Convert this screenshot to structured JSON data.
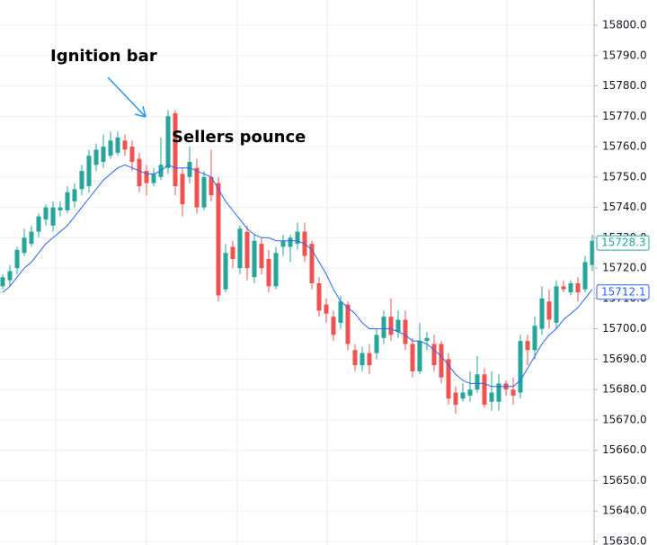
{
  "chart_data": {
    "type": "candlestick",
    "annotations": [
      "Ignition bar",
      "Sellers pounce"
    ],
    "up_color": "#26a69a",
    "down_color": "#ef5350",
    "open": [
      15714,
      15716,
      15720,
      15725,
      15728,
      15732,
      15736,
      15734,
      15739,
      15739,
      15742,
      15746,
      15747,
      15754,
      15755,
      15757,
      15758,
      15762,
      15760,
      15756,
      15752,
      15748,
      15750,
      15753,
      15771,
      15751,
      15750,
      15753,
      15740,
      15750,
      15748,
      15713,
      15727,
      15720,
      15732,
      15717,
      15728,
      15723,
      15714,
      15727,
      15727,
      15728,
      15732,
      15728,
      15715,
      15708,
      15704,
      15702,
      15708,
      15693,
      15688,
      15692,
      15692,
      15697,
      15704,
      15699,
      15703,
      15695,
      15686,
      15696,
      15695,
      15695,
      15690,
      15679,
      15677,
      15678,
      15680,
      15685,
      15676,
      15676,
      15682,
      15680,
      15679,
      15696,
      15693,
      15700,
      15709,
      15702,
      15714,
      15712,
      15715,
      15713,
      15721
    ],
    "high": [
      15718,
      15721,
      15727,
      15733,
      15734,
      15738,
      15741,
      15742,
      15742,
      15747,
      15748,
      15754,
      15759,
      15761,
      15764,
      15765,
      15765,
      15764,
      15762,
      15758,
      15754,
      15753,
      15763,
      15772,
      15772,
      15753,
      15760,
      15756,
      15752,
      15759,
      15750,
      15728,
      15729,
      15734,
      15734,
      15731,
      15730,
      15726,
      15727,
      15731,
      15731,
      15735,
      15735,
      15729,
      15717,
      15710,
      15706,
      15711,
      15709,
      15695,
      15694,
      15695,
      15700,
      15706,
      15710,
      15706,
      15706,
      15697,
      15702,
      15699,
      15698,
      15696,
      15692,
      15681,
      15682,
      15686,
      15691,
      15687,
      15686,
      15685,
      15683,
      15684,
      15698,
      15698,
      15704,
      15714,
      15713,
      15716,
      15716,
      15716,
      15717,
      15724,
      15731
    ],
    "low": [
      15713,
      15714,
      15718,
      15724,
      15727,
      15730,
      15734,
      15732,
      15737,
      15738,
      15740,
      15744,
      15745,
      15752,
      15753,
      15756,
      15757,
      15757,
      15752,
      15745,
      15744,
      15747,
      15749,
      15751,
      15744,
      15737,
      15748,
      15738,
      15739,
      15742,
      15709,
      15712,
      15720,
      15718,
      15716,
      15715,
      15718,
      15712,
      15713,
      15724,
      15722,
      15726,
      15722,
      15713,
      15704,
      15702,
      15696,
      15700,
      15693,
      15686,
      15686,
      15685,
      15690,
      15695,
      15696,
      15697,
      15693,
      15684,
      15685,
      15693,
      15686,
      15682,
      15675,
      15672,
      15676,
      15676,
      15679,
      15674,
      15673,
      15673,
      15678,
      15675,
      15677,
      15688,
      15690,
      15698,
      15700,
      15700,
      15712,
      15711,
      15709,
      15712,
      15719
    ],
    "close": [
      15717,
      15719,
      15726,
      15730,
      15732,
      15737,
      15740,
      15740,
      15740,
      15745,
      15746,
      15752,
      15757,
      15759,
      15760,
      15762,
      15763,
      15759,
      15755,
      15747,
      15748,
      15751,
      15754,
      15770,
      15747,
      15741,
      15755,
      15740,
      15750,
      15744,
      15711,
      15725,
      15723,
      15733,
      15720,
      15729,
      15720,
      15714,
      15725,
      15729,
      15730,
      15732,
      15724,
      15715,
      15706,
      15705,
      15698,
      15709,
      15695,
      15688,
      15692,
      15688,
      15698,
      15704,
      15698,
      15703,
      15695,
      15686,
      15696,
      15697,
      15688,
      15684,
      15677,
      15675,
      15679,
      15680,
      15685,
      15675,
      15679,
      15682,
      15680,
      15678,
      15696,
      15693,
      15701,
      15710,
      15703,
      15714,
      15713,
      15715,
      15712,
      15722,
      15729
    ],
    "ma": {
      "color": "#2962ff",
      "values": [
        15712,
        15714,
        15717,
        15720,
        15722,
        15725,
        15728,
        15730,
        15732,
        15734,
        15737,
        15740,
        15743,
        15746,
        15749,
        15751,
        15753,
        15754,
        15753,
        15752,
        15751,
        15751,
        15752,
        15754,
        15753,
        15753,
        15753,
        15752,
        15751,
        15750,
        15746,
        15742,
        15739,
        15736,
        15733,
        15731,
        15730,
        15730,
        15729,
        15729,
        15729,
        15729,
        15728,
        15726,
        15722,
        15718,
        15713,
        15709,
        15707,
        15705,
        15702,
        15700,
        15700,
        15700,
        15700,
        15699,
        15698,
        15696,
        15696,
        15695,
        15693,
        15691,
        15688,
        15685,
        15683,
        15682,
        15682,
        15682,
        15681,
        15681,
        15681,
        15681,
        15683,
        15687,
        15691,
        15695,
        15698,
        15700,
        15703,
        15705,
        15707,
        15710,
        15713
      ]
    },
    "price_markers": [
      {
        "value": 15728.3,
        "color": "#26a69a"
      },
      {
        "value": 15712.1,
        "color": "#2962ff"
      }
    ],
    "ylim": [
      15628.8,
      15808.3
    ],
    "yticks": [
      {
        "value": 15630,
        "label": "15630.0"
      },
      {
        "value": 15640,
        "label": "15640.0"
      },
      {
        "value": 15650,
        "label": "15650.0"
      },
      {
        "value": 15660,
        "label": "15660.0"
      },
      {
        "value": 15670,
        "label": "15670.0"
      },
      {
        "value": 15680,
        "label": "15680.0"
      },
      {
        "value": 15690,
        "label": "15690.0"
      },
      {
        "value": 15700,
        "label": "15700.0"
      },
      {
        "value": 15710,
        "label": "15710.0"
      },
      {
        "value": 15720,
        "label": "15720.0"
      },
      {
        "value": 15730,
        "label": "15730.0"
      },
      {
        "value": 15740,
        "label": "15740.0"
      },
      {
        "value": 15750,
        "label": "15750.0"
      },
      {
        "value": 15760,
        "label": "15760.0"
      },
      {
        "value": 15770,
        "label": "15770.0"
      },
      {
        "value": 15780,
        "label": "15780.0"
      },
      {
        "value": 15790,
        "label": "15790.0"
      },
      {
        "value": 15800,
        "label": "15800.0"
      }
    ],
    "grid": true
  }
}
